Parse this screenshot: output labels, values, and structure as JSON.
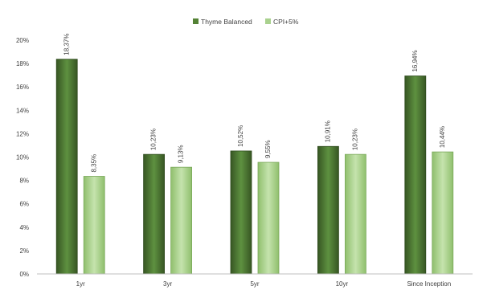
{
  "chart_data": {
    "type": "bar",
    "title": "",
    "xlabel": "",
    "ylabel": "",
    "categories": [
      "1yr",
      "3yr",
      "5yr",
      "10yr",
      "Since Inception"
    ],
    "series": [
      {
        "name": "Thyme Balanced",
        "values": [
          18.37,
          10.23,
          10.52,
          10.91,
          16.94
        ],
        "labels": [
          "18,37%",
          "10,23%",
          "10,52%",
          "10,91%",
          "16,94%"
        ],
        "color": "#548235"
      },
      {
        "name": "CPI+5%",
        "values": [
          8.35,
          9.13,
          9.55,
          10.23,
          10.44
        ],
        "labels": [
          "8,35%",
          "9,13%",
          "9,55%",
          "10,23%",
          "10,44%"
        ],
        "color": "#a9d18e"
      }
    ],
    "ylim": [
      0,
      20
    ],
    "yticks": [
      "0%",
      "2%",
      "4%",
      "6%",
      "8%",
      "10%",
      "12%",
      "14%",
      "16%",
      "18%",
      "20%"
    ],
    "grid": false,
    "legend_position": "top-center"
  }
}
